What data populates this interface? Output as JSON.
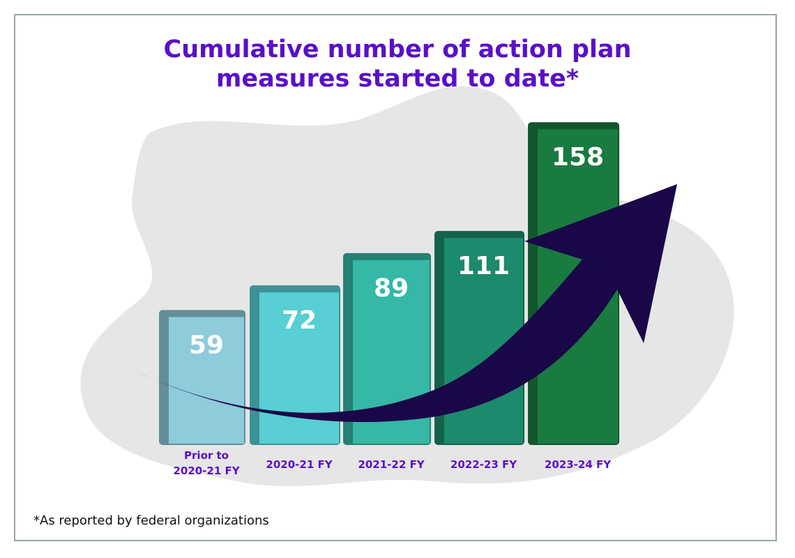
{
  "chart_data": {
    "type": "bar",
    "title": "Cumulative number of action plan measures started to date*",
    "title_lines": [
      "Cumulative number of action plan",
      "measures started to date*"
    ],
    "categories": [
      [
        "Prior to",
        "2020-21 FY"
      ],
      [
        "2020-21 FY"
      ],
      [
        "2021-22 FY"
      ],
      [
        "2022-23 FY"
      ],
      [
        "2023-24 FY"
      ]
    ],
    "values": [
      59,
      72,
      89,
      111,
      158
    ],
    "data_labels": [
      "59",
      "72",
      "89",
      "111",
      "158"
    ],
    "bar_colors": [
      "#8ecbdb",
      "#57cfd4",
      "#35b8a6",
      "#1c8a6c",
      "#197b40"
    ],
    "title_color": "#5a0fc8",
    "arrow_color": "#1a0747",
    "grid": false,
    "footnote": "*As reported by federal organizations"
  }
}
